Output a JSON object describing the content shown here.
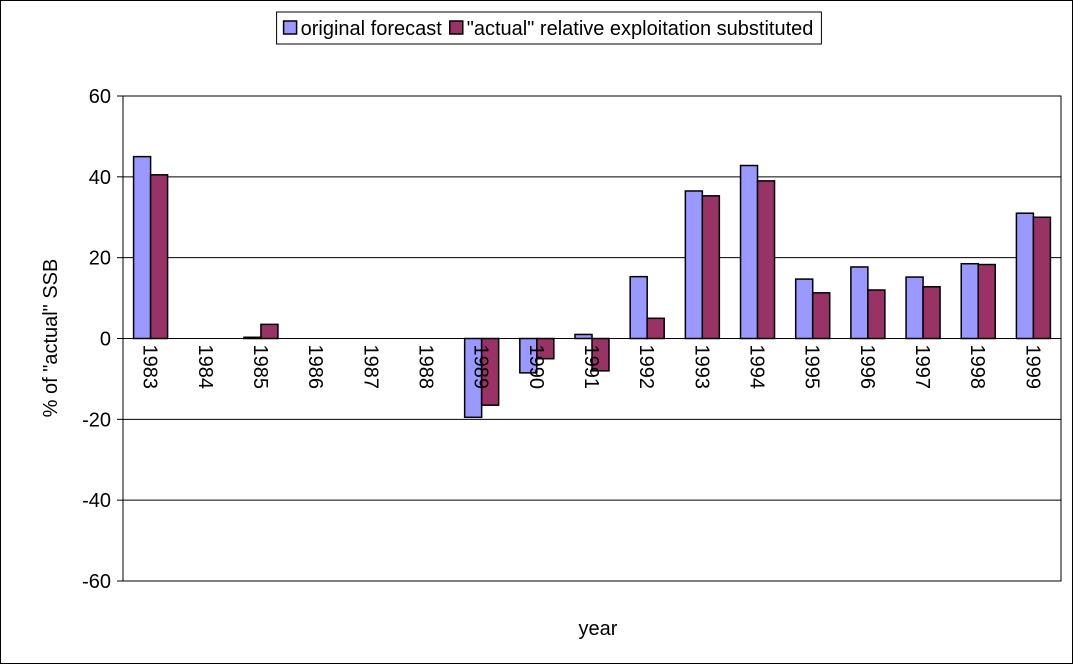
{
  "chart_data": {
    "type": "bar",
    "x_label": "year",
    "y_label": "% of \"actual\" SSB",
    "categories": [
      "1983",
      "1984",
      "1985",
      "1986",
      "1987",
      "1988",
      "1989",
      "1990",
      "1991",
      "1992",
      "1993",
      "1994",
      "1995",
      "1996",
      "1997",
      "1998",
      "1999"
    ],
    "series": [
      {
        "name": "original forecast",
        "color": "#9999ff",
        "values": [
          45,
          null,
          0.3,
          null,
          null,
          null,
          -19.5,
          -8.5,
          1,
          15.3,
          36.5,
          42.8,
          14.7,
          17.7,
          15.2,
          18.5,
          31
        ]
      },
      {
        "name": "\"actual\" relative exploitation substituted",
        "color": "#993366",
        "values": [
          40.5,
          null,
          3.5,
          null,
          null,
          null,
          -16.5,
          -5,
          -8,
          5,
          35.3,
          39,
          11.3,
          12,
          12.8,
          18.3,
          30
        ]
      }
    ],
    "ylim": [
      -60,
      60
    ],
    "yticks": [
      -60,
      -40,
      -20,
      0,
      20,
      40,
      60
    ],
    "grid": true,
    "legend": "top"
  }
}
